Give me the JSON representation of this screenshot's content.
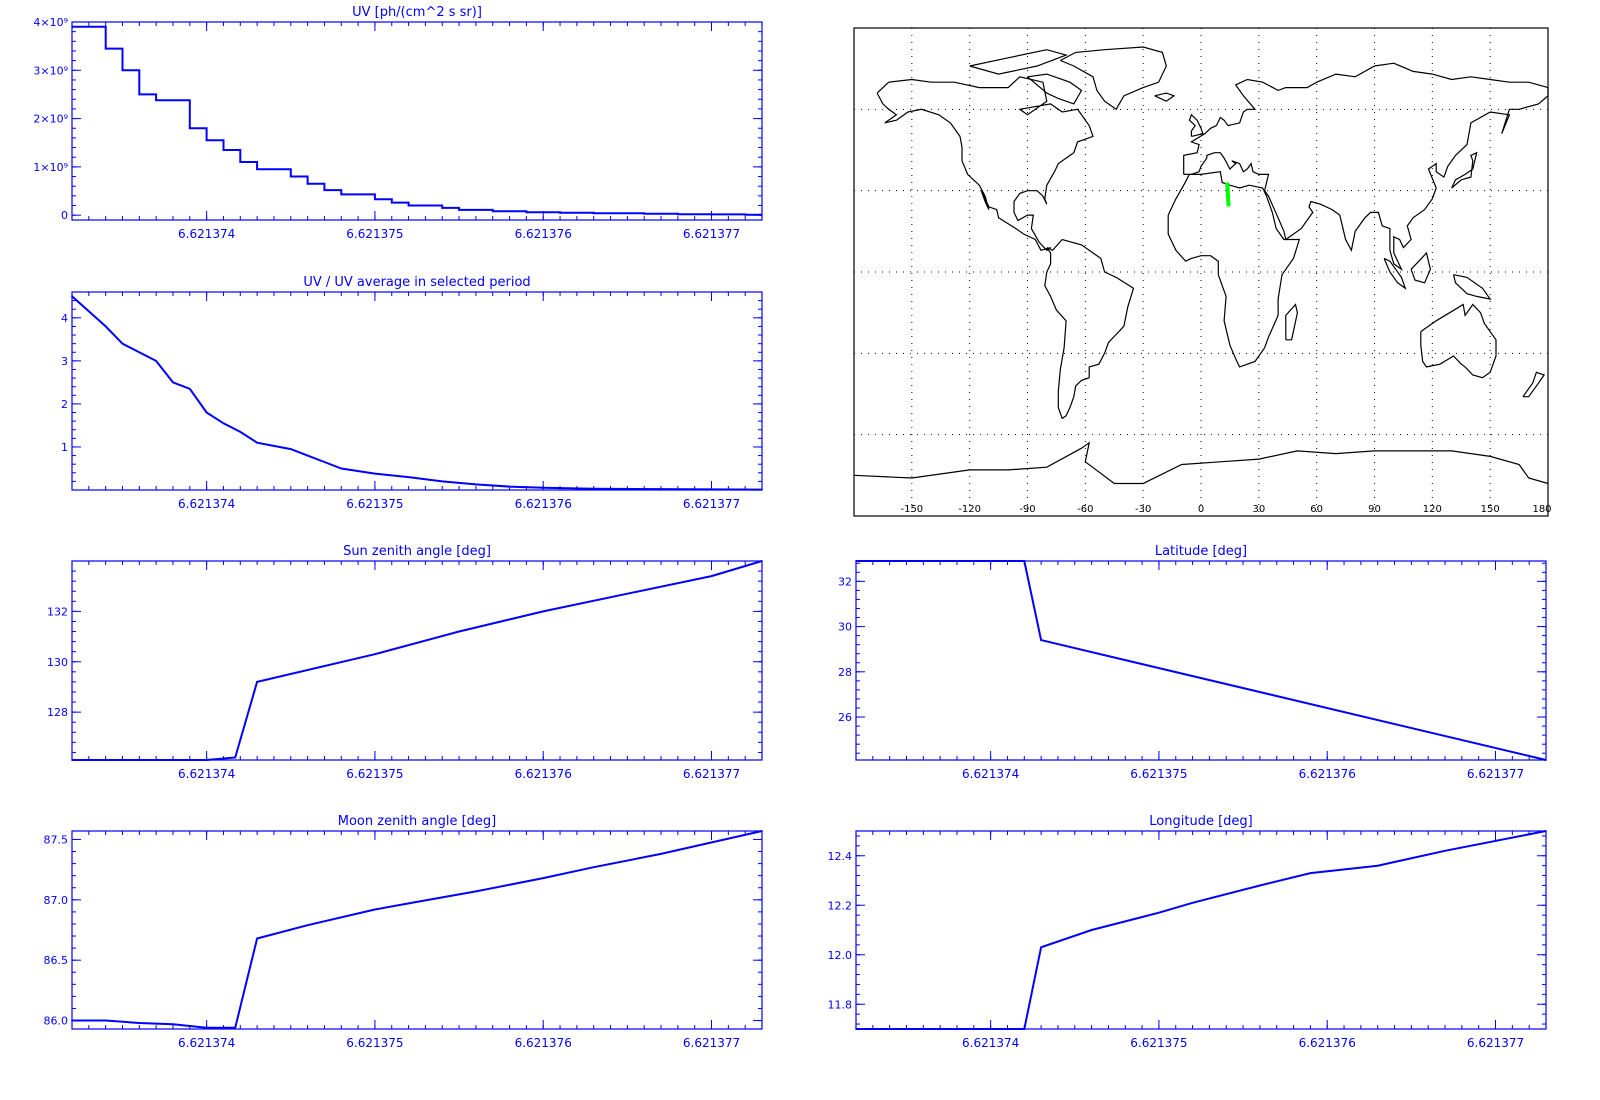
{
  "colors": {
    "plot": "#0000ff",
    "map_line": "#000000",
    "map_grid": "#000000",
    "track": "#00ff00",
    "background": "#ffffff"
  },
  "map": {
    "x_ticks": [
      "-150",
      "-120",
      "-90",
      "-60",
      "-30",
      "0",
      "30",
      "60",
      "90",
      "120",
      "150",
      "180"
    ],
    "lon_range": [
      -180,
      180
    ],
    "lat_range": [
      -90,
      90
    ],
    "grid": "dotted, every 30 deg",
    "track_points": [
      [
        13.6,
        33.0
      ],
      [
        13.9,
        29.2
      ],
      [
        14.3,
        24.2
      ]
    ]
  },
  "chart_data": [
    {
      "id": "uv",
      "type": "line",
      "step": true,
      "title": "UV [ph/(cm^2 s sr)]",
      "xlim": [
        6.6213732,
        6.6213773
      ],
      "ylim": [
        -100000000.0,
        4000000000.0
      ],
      "x_ticks": [
        6.621374,
        6.621375,
        6.621376,
        6.621377
      ],
      "x_tick_labels": [
        "6.621374",
        "6.621375",
        "6.621376",
        "6.621377"
      ],
      "y_ticks": [
        0,
        1000000000.0,
        2000000000.0,
        3000000000.0,
        4000000000.0
      ],
      "y_tick_labels": [
        "0",
        "1×10⁹",
        "2×10⁹",
        "3×10⁹",
        "4×10⁹"
      ],
      "series": [
        {
          "x": [
            6.6213732,
            6.6213734,
            6.6213735,
            6.6213736,
            6.6213737,
            6.6213739,
            6.621374,
            6.6213741,
            6.6213742,
            6.6213743,
            6.6213745,
            6.6213746,
            6.6213747,
            6.6213748,
            6.621375,
            6.6213751,
            6.6213752,
            6.6213754,
            6.6213755,
            6.6213757,
            6.6213759,
            6.6213761,
            6.6213763,
            6.6213766,
            6.6213768,
            6.621377,
            6.6213772
          ],
          "y": [
            3900000000.0,
            3450000000.0,
            3000000000.0,
            2500000000.0,
            2380000000.0,
            1800000000.0,
            1550000000.0,
            1350000000.0,
            1100000000.0,
            950000000.0,
            800000000.0,
            650000000.0,
            520000000.0,
            430000000.0,
            330000000.0,
            260000000.0,
            200000000.0,
            150000000.0,
            110000000.0,
            80000000.0,
            60000000.0,
            50000000.0,
            40000000.0,
            30000000.0,
            20000000.0,
            15000000.0,
            10000000.0
          ]
        }
      ]
    },
    {
      "id": "uv_ratio",
      "type": "line",
      "title": "UV / UV average in selected period",
      "xlim": [
        6.6213732,
        6.6213773
      ],
      "ylim": [
        0.0,
        4.6
      ],
      "x_ticks": [
        6.621374,
        6.621375,
        6.621376,
        6.621377
      ],
      "x_tick_labels": [
        "6.621374",
        "6.621375",
        "6.621376",
        "6.621377"
      ],
      "y_ticks": [
        1,
        2,
        3,
        4
      ],
      "y_tick_labels": [
        "1",
        "2",
        "3",
        "4"
      ],
      "series": [
        {
          "x": [
            6.6213732,
            6.6213734,
            6.6213735,
            6.6213737,
            6.6213738,
            6.6213739,
            6.621374,
            6.6213741,
            6.6213742,
            6.6213743,
            6.6213745,
            6.6213746,
            6.6213747,
            6.6213748,
            6.621375,
            6.6213752,
            6.6213754,
            6.6213756,
            6.6213758,
            6.621376,
            6.6213763,
            6.6213767,
            6.6213773
          ],
          "y": [
            4.5,
            3.8,
            3.4,
            3.0,
            2.5,
            2.35,
            1.8,
            1.55,
            1.35,
            1.1,
            0.95,
            0.8,
            0.65,
            0.5,
            0.38,
            0.3,
            0.2,
            0.13,
            0.08,
            0.05,
            0.03,
            0.02,
            0.01
          ]
        }
      ]
    },
    {
      "id": "sun_zenith",
      "type": "line",
      "title": "Sun zenith angle [deg]",
      "xlim": [
        6.6213732,
        6.6213773
      ],
      "ylim": [
        126.1,
        134.0
      ],
      "x_ticks": [
        6.621374,
        6.621375,
        6.621376,
        6.621377
      ],
      "x_tick_labels": [
        "6.621374",
        "6.621375",
        "6.621376",
        "6.621377"
      ],
      "y_ticks": [
        128,
        130,
        132
      ],
      "y_tick_labels": [
        "128",
        "130",
        "132"
      ],
      "series": [
        {
          "x": [
            6.6213732,
            6.6213736,
            6.621374,
            6.62137417,
            6.6213743,
            6.621375,
            6.6213755,
            6.621376,
            6.6213765,
            6.621377,
            6.6213773
          ],
          "y": [
            126.1,
            126.1,
            126.1,
            126.2,
            129.2,
            130.3,
            131.2,
            132.0,
            132.7,
            133.4,
            134.0
          ]
        }
      ]
    },
    {
      "id": "latitude",
      "type": "line",
      "title": "Latitude [deg]",
      "xlim": [
        6.6213732,
        6.6213773
      ],
      "ylim": [
        24.1,
        32.9
      ],
      "x_ticks": [
        6.621374,
        6.621375,
        6.621376,
        6.621377
      ],
      "x_tick_labels": [
        "6.621374",
        "6.621375",
        "6.621376",
        "6.621377"
      ],
      "y_ticks": [
        26,
        28,
        30,
        32
      ],
      "y_tick_labels": [
        "26",
        "28",
        "30",
        "32"
      ],
      "series": [
        {
          "x": [
            6.6213732,
            6.6213742,
            6.6213743,
            6.6213773
          ],
          "y": [
            32.9,
            32.9,
            29.4,
            24.1
          ]
        }
      ]
    },
    {
      "id": "moon_zenith",
      "type": "line",
      "title": "Moon zenith angle [deg]",
      "xlim": [
        6.6213732,
        6.6213773
      ],
      "ylim": [
        85.93,
        87.57
      ],
      "x_ticks": [
        6.621374,
        6.621375,
        6.621376,
        6.621377
      ],
      "x_tick_labels": [
        "6.621374",
        "6.621375",
        "6.621376",
        "6.621377"
      ],
      "y_ticks": [
        86.0,
        86.5,
        87.0,
        87.5
      ],
      "y_tick_labels": [
        "86.0",
        "86.5",
        "87.0",
        "87.5"
      ],
      "series": [
        {
          "x": [
            6.6213732,
            6.6213734,
            6.6213736,
            6.6213738,
            6.621374,
            6.62137417,
            6.6213743,
            6.6213746,
            6.621375,
            6.6213752,
            6.6213756,
            6.621376,
            6.6213763,
            6.6213767,
            6.6213773
          ],
          "y": [
            86.0,
            86.0,
            85.98,
            85.97,
            85.94,
            85.94,
            86.68,
            86.79,
            86.92,
            86.97,
            87.07,
            87.18,
            87.27,
            87.38,
            87.57
          ]
        }
      ]
    },
    {
      "id": "longitude",
      "type": "line",
      "title": "Longitude [deg]",
      "xlim": [
        6.6213732,
        6.6213773
      ],
      "ylim": [
        11.7,
        12.5
      ],
      "x_ticks": [
        6.621374,
        6.621375,
        6.621376,
        6.621377
      ],
      "x_tick_labels": [
        "6.621374",
        "6.621375",
        "6.621376",
        "6.621377"
      ],
      "y_ticks": [
        11.8,
        12.0,
        12.2,
        12.4
      ],
      "y_tick_labels": [
        "11.8",
        "12.0",
        "12.2",
        "12.4"
      ],
      "series": [
        {
          "x": [
            6.6213732,
            6.6213742,
            6.6213743,
            6.6213746,
            6.621375,
            6.6213752,
            6.6213756,
            6.6213759,
            6.6213763,
            6.6213767,
            6.6213773
          ],
          "y": [
            11.7,
            11.7,
            12.03,
            12.1,
            12.17,
            12.21,
            12.28,
            12.33,
            12.36,
            12.42,
            12.5
          ]
        }
      ]
    }
  ]
}
